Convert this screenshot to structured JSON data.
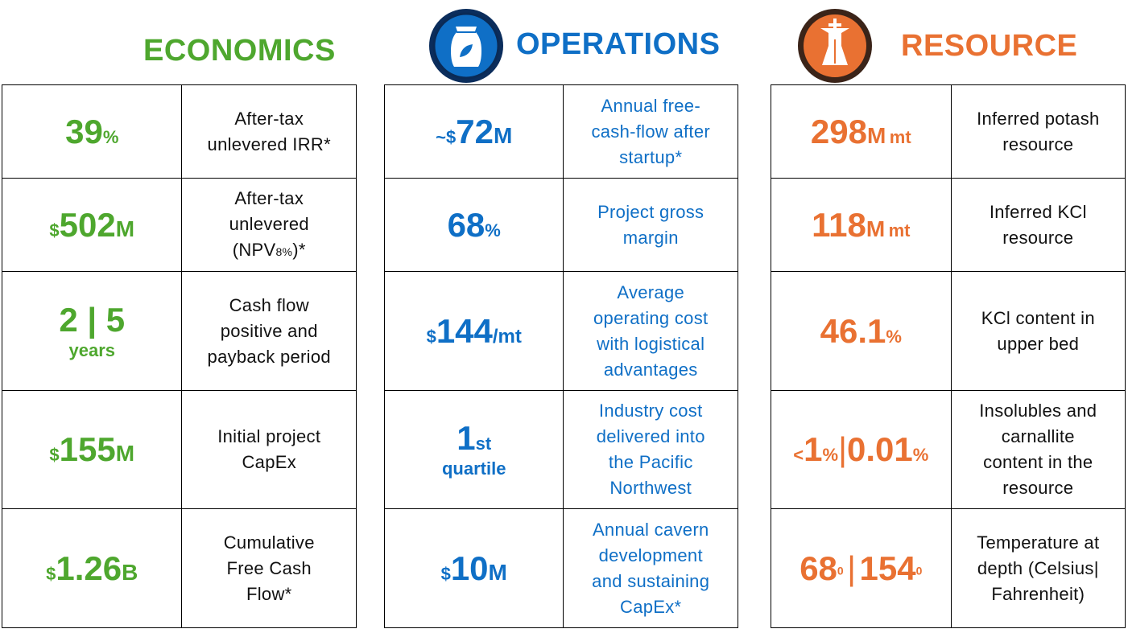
{
  "colors": {
    "economics": "#4ea72e",
    "operations": "#0f6fc6",
    "resource": "#e97132"
  },
  "headings": {
    "economics": "ECONOMICS",
    "operations": "OPERATIONS",
    "resource": "RESOURCE"
  },
  "icons": {
    "operations": "fertilizer-bag-icon",
    "resource": "mine-shaft-icon"
  },
  "economics": [
    {
      "v1": "39",
      "v2": "%",
      "desc": [
        "After-tax",
        "unlevered IRR*"
      ]
    },
    {
      "v0": "$",
      "v1": "502",
      "v2": "M",
      "desc": [
        "After-tax",
        "unlevered"
      ],
      "npv_pre": "(NPV",
      "npv_sub": "8%",
      "npv_post": ")*"
    },
    {
      "v1": "2 | 5",
      "v2": "years",
      "desc": [
        "Cash flow",
        "positive and",
        "payback period"
      ]
    },
    {
      "v0": "$",
      "v1": "155",
      "v2": "M",
      "desc": [
        "Initial project",
        "CapEx"
      ]
    },
    {
      "v0": "$",
      "v1": "1.26",
      "v2": "B",
      "desc": [
        "Cumulative",
        "Free Cash",
        "Flow*"
      ]
    }
  ],
  "operations": [
    {
      "v0": "~$",
      "v1": "72",
      "v2": "M",
      "desc": [
        "Annual free-",
        "cash-flow after",
        "startup*"
      ]
    },
    {
      "v1": "68",
      "v2": "%",
      "desc": [
        "Project gross",
        "margin"
      ]
    },
    {
      "v0": "$",
      "v1": "144",
      "v2": "/mt",
      "desc": [
        "Average",
        "operating cost",
        "with logistical",
        "advantages"
      ]
    },
    {
      "v1": "1",
      "v2": "st",
      "v3": "quartile",
      "desc": [
        "Industry cost",
        "delivered into",
        "the Pacific",
        "Northwest"
      ]
    },
    {
      "v0": "$",
      "v1": "10",
      "v2": "M",
      "desc": [
        "Annual cavern",
        "development",
        "and sustaining",
        "CapEx*"
      ]
    }
  ],
  "resource": [
    {
      "v1": "298",
      "v2": "M",
      "v3": "mt",
      "desc": [
        "Inferred potash",
        "resource"
      ]
    },
    {
      "v1": "118",
      "v2": "M",
      "v3": "mt",
      "desc": [
        "Inferred KCl",
        "resource"
      ]
    },
    {
      "v1": "46.1",
      "v2": "%",
      "desc": [
        "KCl content in",
        "upper bed"
      ]
    },
    {
      "v0": "<",
      "v1": "1",
      "v2": "%",
      "v3": "|",
      "v4": "0.01",
      "v5": "%",
      "desc": [
        "Insolubles and",
        "carnallite",
        "content in the",
        "resource"
      ]
    },
    {
      "v1": "68",
      "v2": "0",
      "v3": "|",
      "v4": "154",
      "v5": "0",
      "desc": [
        "Temperature at",
        "depth (Celsius|",
        "Fahrenheit)"
      ]
    }
  ]
}
